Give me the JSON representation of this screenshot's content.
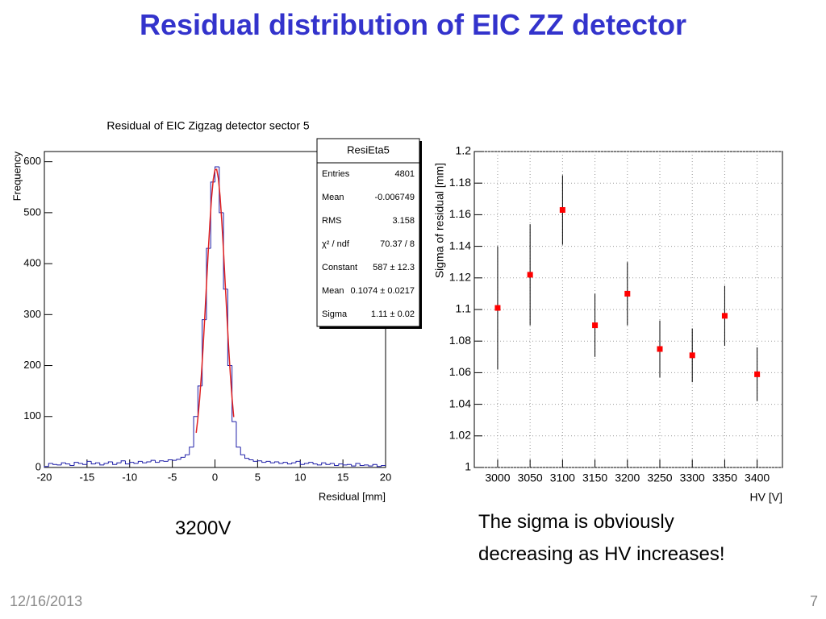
{
  "title": "Residual distribution of EIC ZZ detector",
  "chart_data": [
    {
      "type": "histogram",
      "title": "Residual of EIC Zigzag detector sector 5",
      "xlabel": "Residual [mm]",
      "ylabel": "Frequency",
      "xlim": [
        -20,
        20
      ],
      "xticks": [
        -20,
        -15,
        -10,
        -5,
        0,
        5,
        10,
        15,
        20
      ],
      "ylim": [
        0,
        620
      ],
      "yticks": [
        0,
        100,
        200,
        300,
        400,
        500,
        600
      ],
      "color": "#1f1fa8",
      "bins": [
        -20,
        -19.5,
        -19,
        -18.5,
        -18,
        -17.5,
        -17,
        -16.5,
        -16,
        -15.5,
        -15,
        -14.5,
        -14,
        -13.5,
        -13,
        -12.5,
        -12,
        -11.5,
        -11,
        -10.5,
        -10,
        -9.5,
        -9,
        -8.5,
        -8,
        -7.5,
        -7,
        -6.5,
        -6,
        -5.5,
        -5,
        -4.5,
        -4,
        -3.5,
        -3,
        -2.5,
        -2,
        -1.5,
        -1,
        -0.5,
        0,
        0.5,
        1,
        1.5,
        2,
        2.5,
        3,
        3.5,
        4,
        4.5,
        5,
        5.5,
        6,
        6.5,
        7,
        7.5,
        8,
        8.5,
        9,
        9.5,
        10,
        10.5,
        11,
        11.5,
        12,
        12.5,
        13,
        13.5,
        14,
        14.5,
        15,
        15.5,
        16,
        16.5,
        17,
        17.5,
        18,
        18.5,
        19,
        19.5,
        20
      ],
      "values": [
        2,
        8,
        6,
        5,
        9,
        7,
        4,
        10,
        8,
        6,
        12,
        7,
        9,
        5,
        8,
        11,
        6,
        9,
        13,
        7,
        10,
        8,
        12,
        9,
        11,
        14,
        10,
        13,
        12,
        15,
        14,
        16,
        20,
        25,
        40,
        100,
        160,
        290,
        430,
        560,
        590,
        500,
        350,
        200,
        90,
        40,
        25,
        18,
        15,
        12,
        13,
        10,
        12,
        9,
        11,
        8,
        10,
        7,
        9,
        12,
        6,
        8,
        10,
        7,
        5,
        9,
        6,
        8,
        4,
        7,
        5,
        6,
        3,
        8,
        4,
        5,
        3,
        6,
        2,
        4
      ],
      "fit": {
        "color": "#e02020",
        "x": [
          -2.2,
          -2.0,
          -1.8,
          -1.6,
          -1.4,
          -1.2,
          -1.0,
          -0.8,
          -0.6,
          -0.4,
          -0.2,
          0,
          0.2,
          0.4,
          0.6,
          0.8,
          1.0,
          1.2,
          1.4,
          1.6,
          1.8,
          2.0,
          2.2
        ],
        "values": [
          68,
          97,
          134,
          180,
          233,
          294,
          357,
          420,
          479,
          529,
          565,
          584,
          585,
          567,
          532,
          483,
          425,
          361,
          298,
          237,
          183,
          137,
          99
        ]
      },
      "stats": {
        "title": "ResiEta5",
        "rows": [
          [
            "Entries",
            "4801"
          ],
          [
            "Mean",
            "-0.006749"
          ],
          [
            "RMS",
            "3.158"
          ],
          [
            "χ² / ndf",
            "70.37 / 8"
          ],
          [
            "Constant",
            "587 ± 12.3"
          ],
          [
            "Mean",
            "0.1074 ± 0.0217"
          ],
          [
            "Sigma",
            "1.11 ± 0.02"
          ]
        ]
      }
    },
    {
      "type": "scatter",
      "xlabel": "HV [V]",
      "ylabel": "Sigma of residual [mm]",
      "x": [
        3000,
        3050,
        3100,
        3150,
        3200,
        3250,
        3300,
        3350,
        3400
      ],
      "values": [
        1.101,
        1.122,
        1.163,
        1.09,
        1.11,
        1.075,
        1.071,
        1.096,
        1.059
      ],
      "errors": [
        0.039,
        0.032,
        0.022,
        0.02,
        0.02,
        0.018,
        0.017,
        0.019,
        0.017
      ],
      "color": "#ff0000",
      "xlim": [
        2964,
        3439
      ],
      "xticks": [
        3000,
        3050,
        3100,
        3150,
        3200,
        3250,
        3300,
        3350,
        3400
      ],
      "ylim": [
        1,
        1.2
      ],
      "yticks": [
        1,
        1.02,
        1.04,
        1.06,
        1.08,
        1.1,
        1.12,
        1.14,
        1.16,
        1.18,
        1.2
      ],
      "grid": true
    }
  ],
  "captions": [
    "3200V",
    "The sigma is obviously decreasing as HV increases!"
  ],
  "footer": {
    "date": "12/16/2013",
    "page": "7"
  }
}
